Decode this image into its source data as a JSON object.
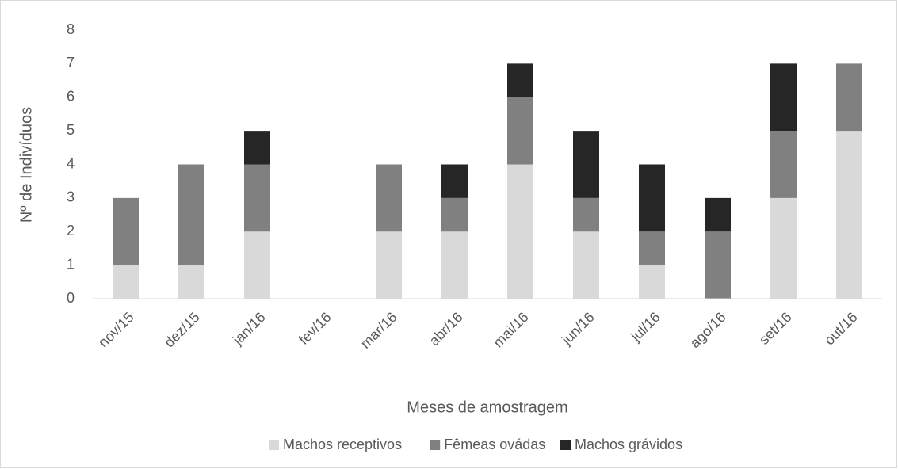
{
  "chart_data": {
    "type": "bar",
    "stacked": true,
    "xlabel": "Meses de amostragem",
    "ylabel": "Nº de Indivíduos",
    "categories": [
      "nov/15",
      "dez/15",
      "jan/16",
      "fev/16",
      "mar/16",
      "abr/16",
      "mai/16",
      "jun/16",
      "jul/16",
      "ago/16",
      "set/16",
      "out/16"
    ],
    "series": [
      {
        "name": "Machos receptivos",
        "color": "#d9d9d9",
        "values": [
          1,
          1,
          2,
          0,
          2,
          2,
          4,
          2,
          1,
          0,
          3,
          5
        ]
      },
      {
        "name": "Fêmeas ovádas",
        "color": "#808080",
        "values": [
          2,
          3,
          2,
          0,
          2,
          1,
          2,
          1,
          1,
          2,
          2,
          2
        ]
      },
      {
        "name": "Machos grávidos",
        "color": "#262626",
        "values": [
          0,
          0,
          1,
          0,
          0,
          1,
          1,
          2,
          2,
          1,
          2,
          0
        ]
      }
    ],
    "ylim": [
      0,
      8
    ],
    "yticks": [
      0,
      1,
      2,
      3,
      4,
      5,
      6,
      7,
      8
    ],
    "grid": false,
    "legend": "bottom"
  }
}
